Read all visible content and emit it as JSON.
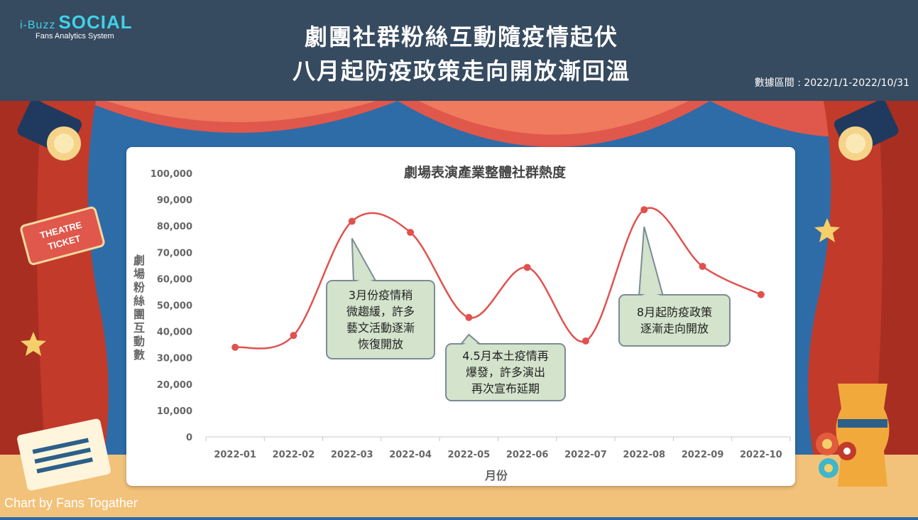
{
  "brand": {
    "prefix": "i-Buzz",
    "name_left": "S",
    "name_o": "O",
    "name_right": "CIAL",
    "tagline": "Fans Analytics System"
  },
  "header": {
    "title_line1": "劇團社群粉絲互動隨疫情起伏",
    "title_line2": "八月起防疫政策走向開放漸回溫",
    "period": "數據區間 : 2022/1/1-2022/10/31"
  },
  "decor": {
    "ticket_line1": "THEATRE",
    "ticket_line2": "TICKET"
  },
  "credit": {
    "prefix": "Chart by ",
    "name": "Fans Togather"
  },
  "chart_data": {
    "type": "line",
    "title": "劇場表演產業整體社群熱度",
    "xlabel": "月份",
    "ylabel": "劇場粉絲團互動數",
    "categories": [
      "2022-01",
      "2022-02",
      "2022-03",
      "2022-04",
      "2022-05",
      "2022-06",
      "2022-07",
      "2022-08",
      "2022-09",
      "2022-10"
    ],
    "values": [
      34000,
      38500,
      81800,
      77600,
      45300,
      64300,
      36400,
      86200,
      64700,
      54000
    ],
    "ylim": [
      0,
      100000
    ],
    "yticks": [
      "0",
      "10,000",
      "20,000",
      "30,000",
      "40,000",
      "50,000",
      "60,000",
      "70,000",
      "80,000",
      "90,000",
      "100,000"
    ],
    "smooth": true,
    "grid": false,
    "line_color": "#e0524f",
    "annotations": [
      {
        "text_lines": [
          "3月份疫情稍",
          "微趨緩，許多",
          "藝文活動逐漸",
          "恢復開放"
        ],
        "target": "2022-03"
      },
      {
        "text_lines": [
          "4.5月本土疫情再",
          "爆發，許多演出",
          "再次宣布延期"
        ],
        "target": "2022-05"
      },
      {
        "text_lines": [
          "8月起防疫政策",
          "逐漸走向開放"
        ],
        "target": "2022-08"
      }
    ]
  }
}
